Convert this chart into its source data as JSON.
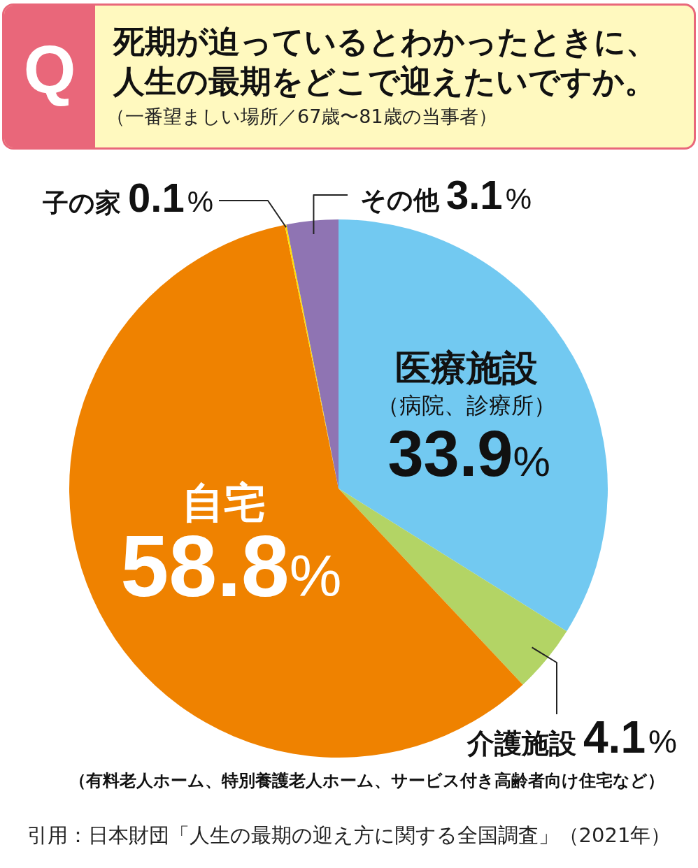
{
  "chart_data": {
    "type": "pie",
    "title": "死期が迫っているとわかったときに、人生の最期をどこで迎えたいですか。",
    "subtitle": "（一番望ましい場所／67歳〜81歳の当事者）",
    "categories": [
      "医療施設",
      "介護施設",
      "自宅",
      "子の家",
      "その他"
    ],
    "values": [
      33.9,
      4.1,
      58.8,
      0.1,
      3.1
    ],
    "colors": [
      "#72c9f1",
      "#b3d465",
      "#ef8200",
      "#ffe100",
      "#8f74b3"
    ],
    "value_labels": [
      "33.9%",
      "4.1%",
      "58.8%",
      "0.1%",
      "3.1%"
    ],
    "annotations": [
      "Q",
      "（病院、診療所）",
      "（有料老人ホーム、特別養護老人ホーム、サービス付き高齢者向け住宅など）",
      "引用：日本財団「人生の最期の迎え方に関する全国調査」（2021年）"
    ]
  }
}
